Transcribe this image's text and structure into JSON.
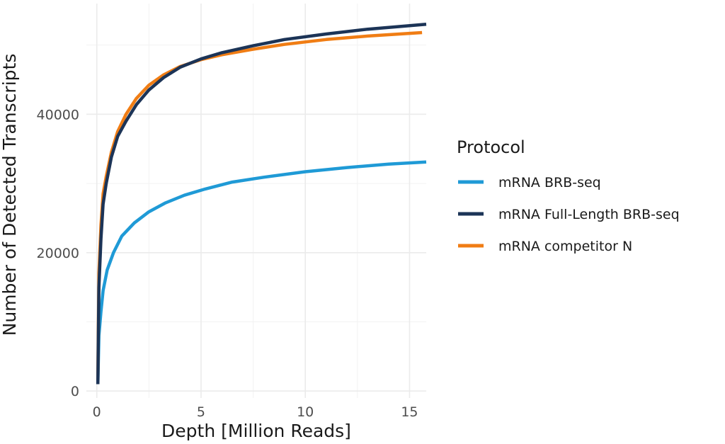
{
  "chart_data": {
    "type": "line",
    "title": "",
    "xlabel": "Depth [Million Reads]",
    "ylabel": "Number of Detected Transcripts",
    "xlim": [
      -0.5,
      15.8
    ],
    "ylim": [
      -1000,
      56000
    ],
    "x_ticks": [
      0,
      5,
      10,
      15
    ],
    "y_ticks": [
      0,
      20000,
      40000
    ],
    "x_minor_ticks": [
      2.5,
      7.5,
      12.5
    ],
    "y_minor_ticks": [
      10000,
      30000,
      50000
    ],
    "grid": true,
    "legend": {
      "title": "Protocol",
      "position": "right"
    },
    "series": [
      {
        "name": "mRNA BRB-seq",
        "color": "#1f9ad6",
        "x": [
          0.05,
          0.1,
          0.2,
          0.3,
          0.5,
          0.8,
          1.2,
          1.8,
          2.5,
          3.3,
          4.2,
          5.2,
          6.5,
          8,
          10,
          12,
          14,
          15.8
        ],
        "y": [
          1000,
          8000,
          11500,
          14500,
          17500,
          20000,
          22400,
          24300,
          25900,
          27200,
          28300,
          29200,
          30200,
          30900,
          31700,
          32300,
          32800,
          33100
        ]
      },
      {
        "name": "mRNA Full-Length BRB-seq",
        "color": "#1c3457",
        "x": [
          0.05,
          0.1,
          0.2,
          0.3,
          0.45,
          0.7,
          1.0,
          1.4,
          1.9,
          2.5,
          3.2,
          4.0,
          5.0,
          6.0,
          7.5,
          9,
          11,
          13,
          15.8
        ],
        "y": [
          1000,
          15000,
          22000,
          27000,
          30000,
          33800,
          36800,
          39000,
          41400,
          43500,
          45300,
          46800,
          48000,
          48900,
          49900,
          50800,
          51600,
          52300,
          53000
        ]
      },
      {
        "name": "mRNA competitor N",
        "color": "#f07d14",
        "x": [
          0.05,
          0.1,
          0.2,
          0.3,
          0.45,
          0.7,
          1.0,
          1.4,
          1.9,
          2.5,
          3.2,
          4.0,
          5.0,
          6.0,
          7.5,
          9,
          11,
          13,
          15.6
        ],
        "y": [
          1500,
          17000,
          24000,
          28500,
          31000,
          34500,
          37500,
          40000,
          42300,
          44200,
          45700,
          46900,
          47900,
          48600,
          49400,
          50100,
          50800,
          51300,
          51800
        ]
      }
    ]
  }
}
